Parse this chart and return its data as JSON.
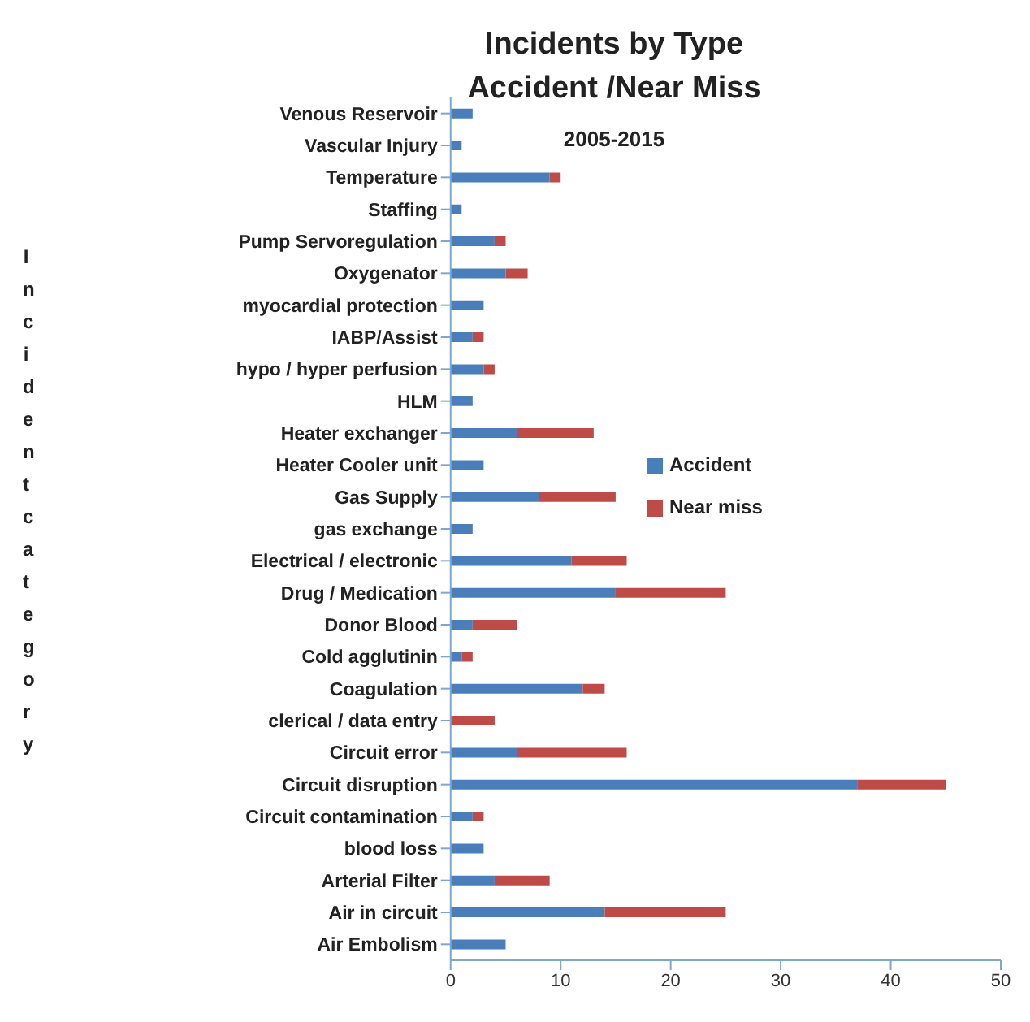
{
  "chart_data": {
    "type": "bar",
    "orientation": "horizontal",
    "stacked": true,
    "title": "Incidents by Type Accident /Near Miss",
    "subtitle": "2005-2015",
    "ylabel": "Incident category",
    "categories": [
      "Venous Reservoir",
      "Vascular Injury",
      "Temperature",
      "Staffing",
      "Pump Servoregulation",
      "Oxygenator",
      "myocardial protection",
      "IABP/Assist",
      "hypo / hyper perfusion",
      "HLM",
      "Heater exchanger",
      "Heater Cooler unit",
      "Gas Supply",
      "gas exchange",
      "Electrical / electronic",
      "Drug / Medication",
      "Donor Blood",
      "Cold agglutinin",
      "Coagulation",
      "clerical / data entry",
      "Circuit error",
      "Circuit disruption",
      "Circuit contamination",
      "blood loss",
      "Arterial Filter",
      "Air in circuit",
      "Air Embolism"
    ],
    "series": [
      {
        "name": "Accident",
        "color": "#4a7ebb",
        "values": [
          2,
          1,
          9,
          1,
          4,
          5,
          3,
          2,
          3,
          2,
          6,
          3,
          8,
          2,
          11,
          15,
          2,
          1,
          12,
          0,
          6,
          37,
          2,
          3,
          4,
          14,
          5
        ]
      },
      {
        "name": "Near miss",
        "color": "#be4b48",
        "values": [
          0,
          0,
          1,
          0,
          1,
          2,
          0,
          1,
          1,
          0,
          7,
          0,
          7,
          0,
          5,
          10,
          4,
          1,
          2,
          4,
          10,
          8,
          1,
          0,
          5,
          11,
          0
        ]
      }
    ],
    "xlim": [
      0,
      50
    ],
    "xticks": [
      0,
      10,
      20,
      30,
      40,
      50
    ],
    "grid": false,
    "legend": "right"
  }
}
